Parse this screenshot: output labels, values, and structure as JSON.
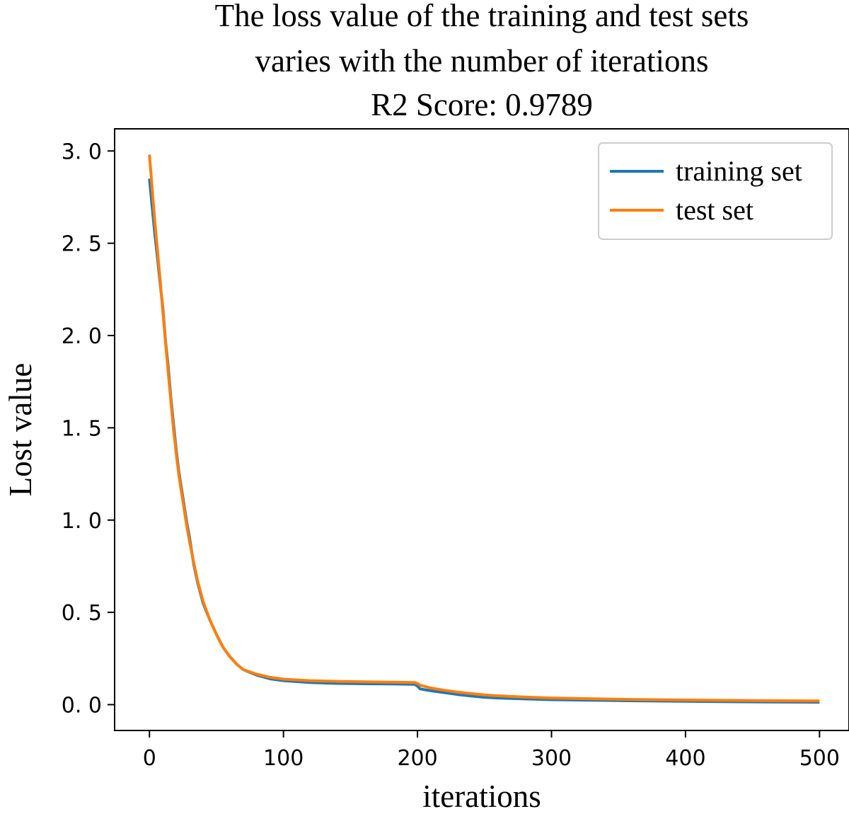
{
  "chart_data": {
    "type": "line",
    "title_lines": [
      "The loss value of the training and test sets",
      "varies with the number of iterations",
      "R2 Score: 0.9789"
    ],
    "xlabel": "iterations",
    "ylabel": "Lost value",
    "xlim": [
      -26,
      522
    ],
    "ylim": [
      -0.14,
      3.12
    ],
    "xticks": [
      0,
      100,
      200,
      300,
      400,
      500
    ],
    "xtick_labels": [
      "0",
      "100",
      "200",
      "300",
      "400",
      "500"
    ],
    "yticks": [
      0.0,
      0.5,
      1.0,
      1.5,
      2.0,
      2.5,
      3.0
    ],
    "ytick_labels": [
      "0. 0",
      "0. 5",
      "1. 0",
      "1. 5",
      "2. 0",
      "2. 5",
      "3. 0"
    ],
    "legend_position": "top-right",
    "series": [
      {
        "name": "training set",
        "color": "#1f77b4",
        "x": [
          0,
          2,
          4,
          6,
          8,
          10,
          12,
          14,
          16,
          18,
          20,
          22,
          25,
          28,
          30,
          33,
          36,
          40,
          45,
          50,
          55,
          60,
          65,
          70,
          80,
          90,
          100,
          120,
          140,
          160,
          180,
          198,
          200,
          202,
          210,
          220,
          230,
          240,
          250,
          260,
          280,
          300,
          350,
          400,
          450,
          500
        ],
        "values": [
          2.85,
          2.7,
          2.55,
          2.42,
          2.28,
          2.15,
          1.97,
          1.83,
          1.66,
          1.52,
          1.38,
          1.26,
          1.12,
          0.98,
          0.9,
          0.76,
          0.66,
          0.55,
          0.46,
          0.38,
          0.31,
          0.26,
          0.22,
          0.19,
          0.16,
          0.14,
          0.13,
          0.12,
          0.115,
          0.113,
          0.112,
          0.11,
          0.1,
          0.085,
          0.075,
          0.065,
          0.055,
          0.047,
          0.04,
          0.036,
          0.031,
          0.027,
          0.022,
          0.018,
          0.015,
          0.013
        ]
      },
      {
        "name": "test set",
        "color": "#ff7f0e",
        "x": [
          0,
          2,
          4,
          6,
          8,
          10,
          12,
          14,
          16,
          18,
          20,
          22,
          25,
          28,
          30,
          33,
          36,
          40,
          45,
          50,
          55,
          60,
          65,
          70,
          80,
          90,
          100,
          120,
          140,
          160,
          180,
          198,
          200,
          202,
          210,
          220,
          230,
          240,
          250,
          260,
          280,
          300,
          350,
          400,
          450,
          500
        ],
        "values": [
          2.98,
          2.8,
          2.62,
          2.46,
          2.3,
          2.13,
          1.96,
          1.8,
          1.64,
          1.49,
          1.36,
          1.24,
          1.1,
          0.96,
          0.88,
          0.77,
          0.67,
          0.56,
          0.46,
          0.38,
          0.31,
          0.26,
          0.22,
          0.19,
          0.165,
          0.148,
          0.138,
          0.13,
          0.126,
          0.124,
          0.122,
          0.12,
          0.115,
          0.105,
          0.09,
          0.078,
          0.068,
          0.06,
          0.053,
          0.048,
          0.041,
          0.036,
          0.029,
          0.025,
          0.022,
          0.02
        ]
      }
    ]
  }
}
